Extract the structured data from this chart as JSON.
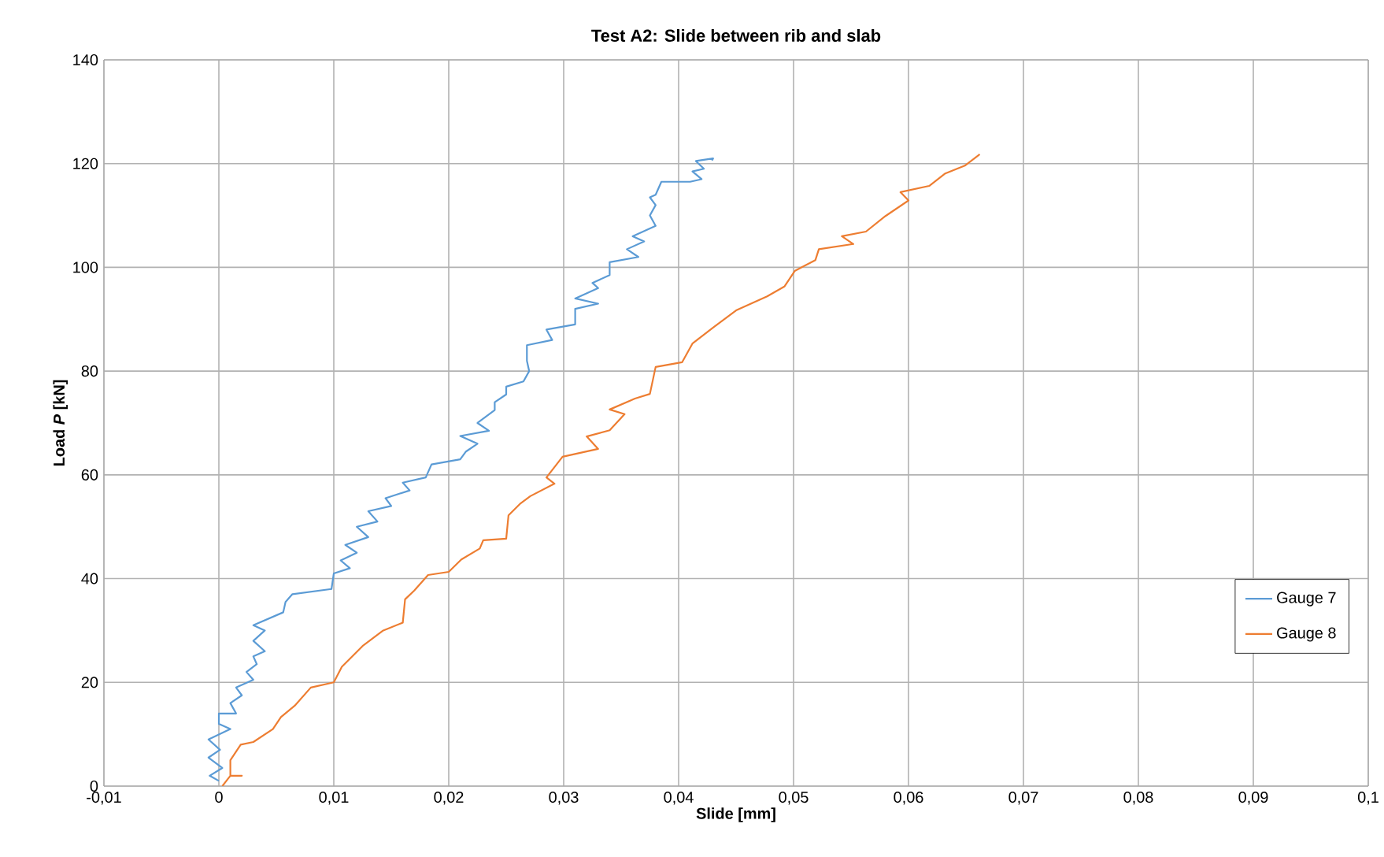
{
  "chart_data": {
    "type": "line",
    "title": "Test A2: Slide between rib and slab",
    "xlabel": "Slide [mm]",
    "ylabel": "Load *P* [kN]",
    "xlim": [
      -0.01,
      0.1
    ],
    "ylim": [
      0,
      140
    ],
    "xticks": [
      {
        "value": -0.01,
        "label": "-0,01"
      },
      0,
      {
        "value": 0.01,
        "label": "0,01"
      },
      {
        "value": 0.02,
        "label": "0,02"
      },
      {
        "value": 0.03,
        "label": "0,03"
      },
      {
        "value": 0.04,
        "label": "0,04"
      },
      {
        "value": 0.05,
        "label": "0,05"
      },
      {
        "value": 0.06,
        "label": "0,06"
      },
      {
        "value": 0.07,
        "label": "0,07"
      },
      {
        "value": 0.08,
        "label": "0,08"
      },
      {
        "value": 0.09,
        "label": "0,09"
      },
      {
        "value": 0.1,
        "label": "0,1"
      }
    ],
    "yticks": [
      0,
      20,
      40,
      60,
      80,
      100,
      120,
      140
    ],
    "grid": true,
    "legend": "right",
    "marker": "none",
    "line_style": "solid",
    "series": [
      {
        "name": "Gauge 7",
        "color": "#5b9bd5",
        "x": [
          0,
          -0.0008,
          0.0003,
          -0.0009,
          0.0001,
          -0.0009,
          0.001,
          0,
          0,
          0.0015,
          0.001,
          0.002,
          0.0015,
          0.003,
          0.0024,
          0.0033,
          0.003,
          0.004,
          0.003,
          0.004,
          0.003,
          0.0056,
          0.0058,
          0.0064,
          0.0098,
          0.01,
          0.0114,
          0.0106,
          0.012,
          0.011,
          0.013,
          0.012,
          0.0138,
          0.013,
          0.015,
          0.0145,
          0.0166,
          0.016,
          0.018,
          0.0185,
          0.021,
          0.0215,
          0.0225,
          0.021,
          0.0235,
          0.0225,
          0.024,
          0.024,
          0.025,
          0.025,
          0.0265,
          0.027,
          0.0268,
          0.0268,
          0.029,
          0.0285,
          0.031,
          0.031,
          0.033,
          0.031,
          0.033,
          0.0325,
          0.034,
          0.034,
          0.0365,
          0.0355,
          0.037,
          0.036,
          0.038,
          0.0375,
          0.038,
          0.0375,
          0.038,
          0.0385,
          0.041,
          0.042,
          0.0412,
          0.0422,
          0.0415,
          0.043,
          0.0429
        ],
        "values": [
          1,
          2,
          3.5,
          5.5,
          7,
          9,
          11,
          12,
          14,
          14,
          16,
          17.5,
          19,
          20.5,
          22,
          23.5,
          25,
          26,
          28,
          30,
          31,
          33.5,
          35.5,
          37,
          38,
          41,
          42,
          43.5,
          45,
          46.5,
          48,
          50,
          51,
          53,
          54,
          55.5,
          57,
          58.5,
          59.5,
          62,
          63,
          64.5,
          66,
          67.5,
          68.5,
          70,
          72.5,
          74,
          75.5,
          77,
          78,
          80,
          82,
          85,
          86,
          88,
          89,
          92,
          93,
          94,
          96,
          97,
          98.5,
          101,
          102,
          103.5,
          105,
          106,
          108,
          110,
          112,
          113.5,
          114,
          116.5,
          116.5,
          117,
          118.5,
          119,
          120.5,
          121,
          120.6
        ]
      },
      {
        "name": "Gauge 8",
        "color": "#ed7d31",
        "x": [
          0.0003,
          0.001,
          0.002,
          0.001,
          0.001,
          0.0019,
          0.003,
          0.0047,
          0.0054,
          0.0066,
          0.008,
          0.01,
          0.0107,
          0.0125,
          0.0143,
          0.016,
          0.0162,
          0.017,
          0.0182,
          0.02,
          0.0211,
          0.0227,
          0.023,
          0.025,
          0.0252,
          0.0262,
          0.0271,
          0.0292,
          0.0285,
          0.0299,
          0.033,
          0.032,
          0.034,
          0.0353,
          0.034,
          0.0362,
          0.0375,
          0.038,
          0.0403,
          0.0412,
          0.043,
          0.045,
          0.0477,
          0.0492,
          0.0501,
          0.0519,
          0.0522,
          0.0552,
          0.0542,
          0.0563,
          0.058,
          0.06,
          0.0593,
          0.0618,
          0.0632,
          0.0649,
          0.0662
        ],
        "values": [
          0,
          2,
          2,
          2,
          5,
          8,
          8.5,
          11,
          13.3,
          15.5,
          19,
          20,
          23,
          27,
          30,
          31.5,
          36,
          37.7,
          40.7,
          41.3,
          43.7,
          45.8,
          47.4,
          47.7,
          52.2,
          54.4,
          55.9,
          58.3,
          59.5,
          63.5,
          65,
          67.4,
          68.6,
          71.7,
          72.6,
          74.7,
          75.6,
          80.8,
          81.7,
          85.3,
          88.4,
          91.7,
          94.4,
          96.3,
          99.3,
          101.4,
          103.5,
          104.5,
          106,
          106.9,
          109.9,
          112.9,
          114.5,
          115.7,
          118.1,
          119.6,
          121.8
        ]
      }
    ]
  }
}
